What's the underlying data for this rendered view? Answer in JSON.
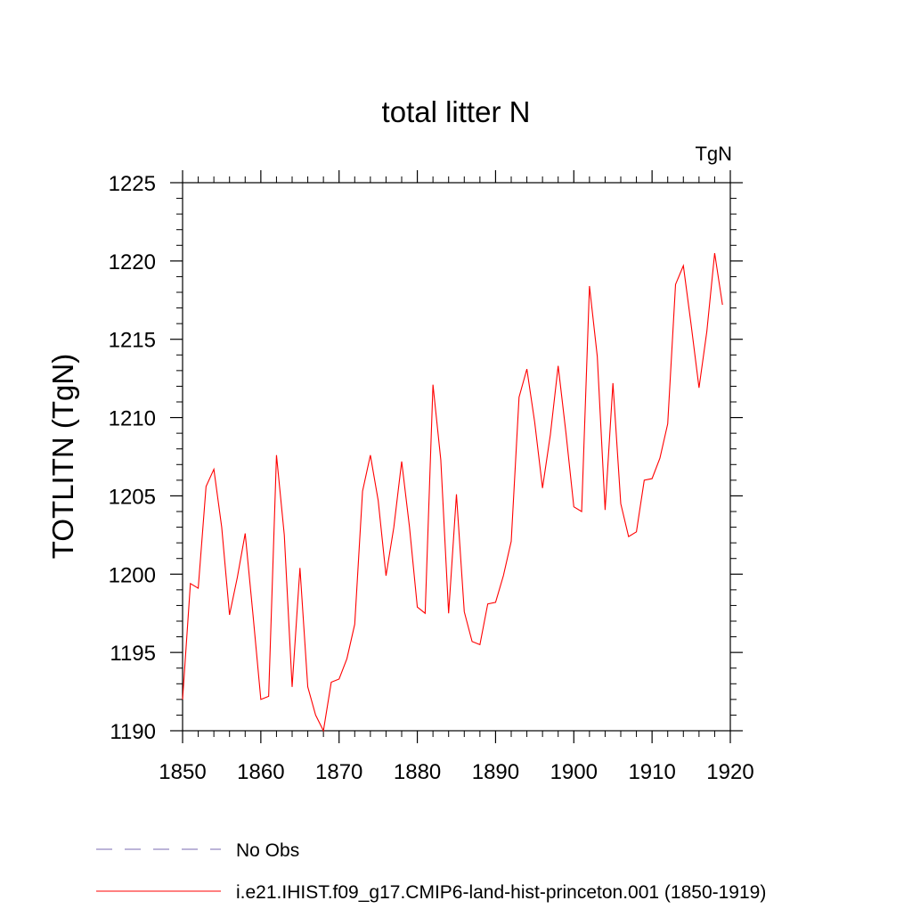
{
  "chart_data": {
    "type": "line",
    "title": "total litter N",
    "units": "TgN",
    "xlabel": "",
    "ylabel": "TOTLITN  (TgN)",
    "xlim": [
      1850,
      1920
    ],
    "ylim": [
      1190,
      1225
    ],
    "xticks": [
      1850,
      1860,
      1870,
      1880,
      1890,
      1900,
      1910,
      1920
    ],
    "yticks": [
      1190,
      1195,
      1200,
      1205,
      1210,
      1215,
      1220,
      1225
    ],
    "grid": false,
    "legend_position": "bottom",
    "series": [
      {
        "name": "i.e21.IHIST.f09_g17.CMIP6-land-hist-princeton.001 (1850-1919)",
        "color": "#ff0000",
        "style": "solid",
        "x": [
          1850,
          1851,
          1852,
          1853,
          1854,
          1855,
          1856,
          1857,
          1858,
          1859,
          1860,
          1861,
          1862,
          1863,
          1864,
          1865,
          1866,
          1867,
          1868,
          1869,
          1870,
          1871,
          1872,
          1873,
          1874,
          1875,
          1876,
          1877,
          1878,
          1879,
          1880,
          1881,
          1882,
          1883,
          1884,
          1885,
          1886,
          1887,
          1888,
          1889,
          1890,
          1891,
          1892,
          1893,
          1894,
          1895,
          1896,
          1897,
          1898,
          1899,
          1900,
          1901,
          1902,
          1903,
          1904,
          1905,
          1906,
          1907,
          1908,
          1909,
          1910,
          1911,
          1912,
          1913,
          1914,
          1915,
          1916,
          1917,
          1918,
          1919
        ],
        "y": [
          1192.0,
          1199.4,
          1199.1,
          1205.6,
          1206.7,
          1203.0,
          1197.4,
          1199.8,
          1202.6,
          1197.4,
          1192.0,
          1192.2,
          1207.6,
          1202.5,
          1192.8,
          1200.4,
          1192.8,
          1191.0,
          1190.0,
          1193.1,
          1193.3,
          1194.6,
          1196.8,
          1205.3,
          1207.6,
          1204.7,
          1199.9,
          1203.0,
          1207.2,
          1203.0,
          1197.9,
          1197.5,
          1212.1,
          1207.3,
          1197.5,
          1205.1,
          1197.6,
          1195.7,
          1195.5,
          1198.1,
          1198.2,
          1199.9,
          1202.1,
          1211.3,
          1213.1,
          1209.7,
          1205.5,
          1208.9,
          1213.3,
          1209.0,
          1204.3,
          1204.0,
          1218.4,
          1213.9,
          1204.1,
          1212.2,
          1204.5,
          1202.4,
          1202.7,
          1206.0,
          1206.1,
          1207.4,
          1209.6,
          1218.5,
          1219.7,
          1215.9,
          1211.9,
          1215.5,
          1220.5,
          1217.2
        ]
      },
      {
        "name": "No Obs",
        "color": "#7a6ab0",
        "style": "dashed",
        "x": [],
        "y": []
      }
    ]
  }
}
